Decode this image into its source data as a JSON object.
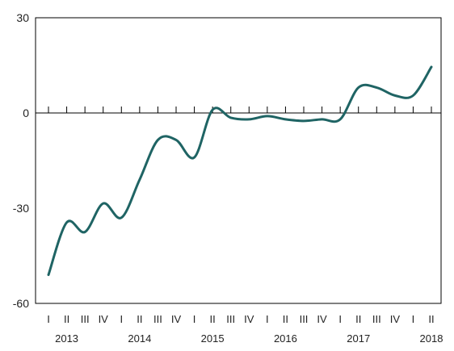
{
  "chart_data": {
    "type": "line",
    "title": "",
    "xlabel": "",
    "ylabel": "",
    "ylim": [
      -60,
      30
    ],
    "y_ticks": [
      30,
      0,
      -30,
      -60
    ],
    "grid": false,
    "legend": "none",
    "colors": {
      "line": "#1f6464",
      "zero_line": "#000000",
      "frame": "#000000"
    },
    "x_quarter_labels": [
      "I",
      "II",
      "III",
      "IV",
      "I",
      "II",
      "III",
      "IV",
      "I",
      "II",
      "III",
      "IV",
      "I",
      "II",
      "III",
      "IV",
      "I",
      "II",
      "III",
      "IV",
      "I",
      "II"
    ],
    "x_year_labels": [
      {
        "label": "2013",
        "quarter_index": 1
      },
      {
        "label": "2014",
        "quarter_index": 5
      },
      {
        "label": "2015",
        "quarter_index": 9
      },
      {
        "label": "2016",
        "quarter_index": 13
      },
      {
        "label": "2017",
        "quarter_index": 17
      },
      {
        "label": "2018",
        "quarter_index": 21
      }
    ],
    "series": [
      {
        "values": [
          -51,
          -34.5,
          -37.5,
          -28.5,
          -33,
          -21,
          -8.5,
          -8.5,
          -14,
          1,
          -1.5,
          -2,
          -1,
          -2,
          -2.5,
          -2,
          -2,
          8,
          8,
          5.5,
          5.5,
          14.5
        ]
      }
    ]
  }
}
